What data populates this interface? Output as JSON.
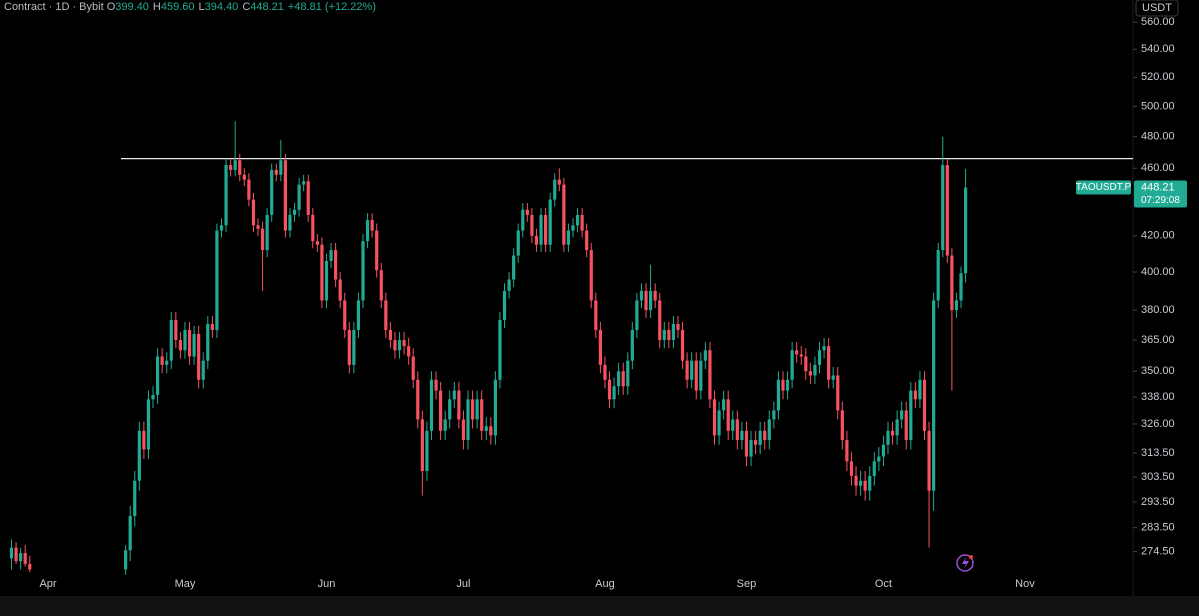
{
  "chart_data": {
    "type": "candlestick",
    "header": {
      "title": "Contract · 1D · Bybit",
      "items": [
        {
          "key": "O",
          "value": "399.40"
        },
        {
          "key": "H",
          "value": "459.60"
        },
        {
          "key": "L",
          "value": "394.40"
        },
        {
          "key": "C",
          "value": "448.21"
        }
      ],
      "change": "+48.81 (+12.22%)"
    },
    "currency": "USDT",
    "symbol": "TAOUSDT.P",
    "last_price": 448.21,
    "countdown": "07:29:08",
    "log_scale": true,
    "up_color": "#22ab94",
    "down_color": "#f7525f",
    "hline": {
      "value": 466,
      "color": "#e8e8e8"
    },
    "ylim": [
      266,
      577
    ],
    "yticks": [
      {
        "value": 274.5,
        "label": "274.50"
      },
      {
        "value": 283.5,
        "label": "283.50"
      },
      {
        "value": 293.5,
        "label": "293.50"
      },
      {
        "value": 303.5,
        "label": "303.50"
      },
      {
        "value": 313.5,
        "label": "313.50"
      },
      {
        "value": 326,
        "label": "326.00"
      },
      {
        "value": 338,
        "label": "338.00"
      },
      {
        "value": 350,
        "label": "350.00"
      },
      {
        "value": 365,
        "label": "365.00"
      },
      {
        "value": 380,
        "label": "380.00"
      },
      {
        "value": 400,
        "label": "400.00"
      },
      {
        "value": 420,
        "label": "420.00"
      },
      {
        "value": 460,
        "label": "460.00"
      },
      {
        "value": 480,
        "label": "480.00"
      },
      {
        "value": 500,
        "label": "500.00"
      },
      {
        "value": 520,
        "label": "520.00"
      },
      {
        "value": 540,
        "label": "540.00"
      },
      {
        "value": 560,
        "label": "560.00"
      }
    ],
    "categories": [
      null,
      null,
      null,
      null,
      null,
      null,
      null,
      null,
      "Apr",
      null,
      null,
      null,
      null,
      null,
      null,
      null,
      null,
      null,
      null,
      null,
      null,
      null,
      null,
      null,
      null,
      null,
      null,
      null,
      null,
      null,
      null,
      null,
      null,
      null,
      null,
      null,
      null,
      null,
      "May",
      null,
      null,
      null,
      null,
      null,
      null,
      null,
      null,
      null,
      null,
      null,
      null,
      null,
      null,
      null,
      null,
      null,
      null,
      null,
      null,
      null,
      null,
      null,
      null,
      null,
      null,
      null,
      null,
      null,
      null,
      "Jun",
      null,
      null,
      null,
      null,
      null,
      null,
      null,
      null,
      null,
      null,
      null,
      null,
      null,
      null,
      null,
      null,
      null,
      null,
      null,
      null,
      null,
      null,
      null,
      null,
      null,
      null,
      null,
      null,
      null,
      "Jul",
      null,
      null,
      null,
      null,
      null,
      null,
      null,
      null,
      null,
      null,
      null,
      null,
      null,
      null,
      null,
      null,
      null,
      null,
      null,
      null,
      null,
      null,
      null,
      null,
      null,
      null,
      null,
      null,
      null,
      null,
      "Aug",
      null,
      null,
      null,
      null,
      null,
      null,
      null,
      null,
      null,
      null,
      null,
      null,
      null,
      null,
      null,
      null,
      null,
      null,
      null,
      null,
      null,
      null,
      null,
      null,
      null,
      null,
      null,
      null,
      null,
      null,
      "Sep",
      null,
      null,
      null,
      null,
      null,
      null,
      null,
      null,
      null,
      null,
      null,
      null,
      null,
      null,
      null,
      null,
      null,
      null,
      null,
      null,
      null,
      null,
      null,
      null,
      null,
      null,
      null,
      null,
      null,
      "Oct",
      null,
      null,
      null,
      null,
      null,
      null,
      null,
      null,
      null,
      null,
      null,
      null,
      null,
      null,
      null,
      null,
      null,
      null,
      null,
      null,
      null,
      null,
      null,
      null,
      null,
      null,
      null,
      null,
      null,
      null,
      "Nov",
      null,
      null,
      null,
      null,
      null,
      null,
      null,
      null,
      null,
      null,
      null,
      null,
      null,
      null,
      null,
      null,
      null,
      null,
      null,
      null,
      null,
      null,
      null
    ],
    "ohlc": [
      [
        272,
        279,
        268,
        276
      ],
      [
        276,
        278,
        270,
        271
      ],
      [
        271,
        276,
        268,
        274
      ],
      [
        274,
        277,
        269,
        270
      ],
      [
        270,
        273,
        267,
        268
      ],
      null,
      null,
      null,
      null,
      null,
      null,
      null,
      null,
      null,
      null,
      null,
      null,
      null,
      null,
      null,
      null,
      null,
      null,
      null,
      null,
      [
        268,
        277,
        266,
        275
      ],
      [
        275,
        292,
        271,
        288
      ],
      [
        288,
        306,
        284,
        302
      ],
      [
        302,
        327,
        298,
        323
      ],
      [
        323,
        327,
        311,
        315
      ],
      [
        315,
        341,
        311,
        337
      ],
      [
        337,
        343,
        333,
        339
      ],
      [
        339,
        361,
        335,
        357
      ],
      [
        357,
        361,
        349,
        353
      ],
      [
        353,
        359,
        349,
        355
      ],
      [
        355,
        379,
        351,
        375
      ],
      [
        375,
        379,
        361,
        365
      ],
      [
        365,
        369,
        356,
        360
      ],
      [
        360,
        374,
        356,
        370
      ],
      [
        370,
        374,
        353,
        357
      ],
      [
        357,
        372,
        353,
        368
      ],
      [
        368,
        372,
        342,
        346
      ],
      [
        346,
        359,
        342,
        355
      ],
      [
        355,
        377,
        351,
        373
      ],
      [
        373,
        377,
        366,
        370
      ],
      [
        370,
        427,
        366,
        423
      ],
      [
        423,
        430,
        419,
        426
      ],
      [
        426,
        466,
        422,
        462
      ],
      [
        462,
        466,
        455,
        459
      ],
      [
        459,
        490,
        455,
        465
      ],
      [
        465,
        469,
        452,
        456
      ],
      [
        456,
        460,
        449,
        453
      ],
      [
        453,
        457,
        437,
        441
      ],
      [
        441,
        445,
        422,
        426
      ],
      [
        426,
        430,
        420,
        424
      ],
      [
        424,
        428,
        390,
        412
      ],
      [
        412,
        436,
        408,
        432
      ],
      [
        432,
        463,
        428,
        459
      ],
      [
        459,
        463,
        452,
        456
      ],
      [
        456,
        478,
        452,
        465
      ],
      [
        465,
        469,
        419,
        423
      ],
      [
        423,
        436,
        419,
        432
      ],
      [
        432,
        439,
        428,
        435
      ],
      [
        435,
        454,
        431,
        450
      ],
      [
        450,
        456,
        446,
        452
      ],
      [
        452,
        456,
        428,
        432
      ],
      [
        432,
        436,
        413,
        417
      ],
      [
        417,
        421,
        411,
        415
      ],
      [
        415,
        419,
        381,
        385
      ],
      [
        385,
        410,
        381,
        406
      ],
      [
        406,
        416,
        402,
        412
      ],
      [
        412,
        416,
        392,
        396
      ],
      [
        396,
        400,
        381,
        385
      ],
      [
        385,
        389,
        366,
        370
      ],
      [
        370,
        374,
        349,
        353
      ],
      [
        353,
        374,
        349,
        370
      ],
      [
        370,
        389,
        366,
        385
      ],
      [
        385,
        421,
        381,
        417
      ],
      [
        417,
        433,
        413,
        429
      ],
      [
        429,
        433,
        419,
        423
      ],
      [
        423,
        427,
        397,
        401
      ],
      [
        401,
        405,
        381,
        385
      ],
      [
        385,
        389,
        366,
        370
      ],
      [
        370,
        374,
        361,
        365
      ],
      [
        365,
        369,
        356,
        360
      ],
      [
        360,
        369,
        356,
        365
      ],
      [
        365,
        369,
        358,
        362
      ],
      [
        362,
        366,
        353,
        357
      ],
      [
        357,
        361,
        342,
        346
      ],
      [
        346,
        350,
        324,
        328
      ],
      [
        328,
        332,
        296,
        306
      ],
      [
        306,
        327,
        302,
        323
      ],
      [
        323,
        350,
        319,
        346
      ],
      [
        346,
        350,
        337,
        341
      ],
      [
        341,
        345,
        319,
        323
      ],
      [
        323,
        332,
        319,
        328
      ],
      [
        328,
        341,
        324,
        337
      ],
      [
        337,
        345,
        333,
        341
      ],
      [
        341,
        345,
        324,
        328
      ],
      [
        328,
        332,
        315,
        319
      ],
      [
        319,
        341,
        315,
        337
      ],
      [
        337,
        341,
        324,
        328
      ],
      [
        328,
        341,
        324,
        337
      ],
      [
        337,
        341,
        319,
        323
      ],
      [
        323,
        329,
        319,
        325
      ],
      [
        325,
        329,
        317,
        321
      ],
      [
        321,
        350,
        317,
        346
      ],
      [
        346,
        379,
        342,
        375
      ],
      [
        375,
        394,
        371,
        390
      ],
      [
        390,
        400,
        386,
        396
      ],
      [
        396,
        413,
        392,
        409
      ],
      [
        409,
        427,
        405,
        423
      ],
      [
        423,
        439,
        419,
        435
      ],
      [
        435,
        439,
        428,
        432
      ],
      [
        432,
        436,
        416,
        420
      ],
      [
        420,
        424,
        411,
        415
      ],
      [
        415,
        436,
        411,
        432
      ],
      [
        432,
        436,
        411,
        415
      ],
      [
        415,
        445,
        411,
        441
      ],
      [
        441,
        457,
        437,
        453
      ],
      [
        453,
        460,
        446,
        450
      ],
      [
        450,
        454,
        411,
        415
      ],
      [
        415,
        427,
        411,
        423
      ],
      [
        423,
        430,
        419,
        426
      ],
      [
        426,
        436,
        422,
        432
      ],
      [
        432,
        436,
        419,
        423
      ],
      [
        423,
        427,
        408,
        412
      ],
      [
        412,
        416,
        381,
        385
      ],
      [
        385,
        389,
        366,
        370
      ],
      [
        370,
        374,
        349,
        353
      ],
      [
        353,
        357,
        342,
        346
      ],
      [
        346,
        350,
        333,
        337
      ],
      [
        337,
        347,
        333,
        343
      ],
      [
        343,
        354,
        339,
        350
      ],
      [
        350,
        354,
        339,
        343
      ],
      [
        343,
        359,
        339,
        355
      ],
      [
        355,
        374,
        351,
        370
      ],
      [
        370,
        389,
        366,
        385
      ],
      [
        385,
        394,
        381,
        390
      ],
      [
        390,
        394,
        376,
        380
      ],
      [
        380,
        404,
        376,
        390
      ],
      [
        390,
        394,
        381,
        385
      ],
      [
        385,
        389,
        361,
        365
      ],
      [
        365,
        374,
        361,
        370
      ],
      [
        370,
        374,
        361,
        365
      ],
      [
        365,
        377,
        361,
        373
      ],
      [
        373,
        377,
        366,
        370
      ],
      [
        370,
        374,
        351,
        355
      ],
      [
        355,
        359,
        342,
        346
      ],
      [
        346,
        359,
        342,
        355
      ],
      [
        355,
        359,
        337,
        341
      ],
      [
        341,
        359,
        337,
        355
      ],
      [
        355,
        364,
        351,
        360
      ],
      [
        360,
        364,
        333,
        337
      ],
      [
        337,
        341,
        317,
        321
      ],
      [
        321,
        336,
        317,
        332
      ],
      [
        332,
        341,
        328,
        337
      ],
      [
        337,
        341,
        319,
        323
      ],
      [
        323,
        332,
        319,
        328
      ],
      [
        328,
        332,
        315,
        319
      ],
      [
        319,
        327,
        315,
        323
      ],
      [
        323,
        327,
        308,
        312
      ],
      [
        312,
        323,
        308,
        319
      ],
      [
        319,
        323,
        313,
        317
      ],
      [
        317,
        327,
        313,
        323
      ],
      [
        323,
        327,
        315,
        319
      ],
      [
        319,
        332,
        315,
        328
      ],
      [
        328,
        336,
        324,
        332
      ],
      [
        332,
        350,
        328,
        346
      ],
      [
        346,
        350,
        337,
        341
      ],
      [
        341,
        350,
        337,
        346
      ],
      [
        346,
        364,
        342,
        360
      ],
      [
        360,
        364,
        354,
        358
      ],
      [
        358,
        362,
        353,
        357
      ],
      [
        357,
        361,
        346,
        350
      ],
      [
        350,
        354,
        344,
        348
      ],
      [
        348,
        357,
        344,
        353
      ],
      [
        353,
        364,
        349,
        360
      ],
      [
        360,
        366,
        356,
        362
      ],
      [
        362,
        366,
        342,
        346
      ],
      [
        346,
        352,
        342,
        348
      ],
      [
        348,
        352,
        328,
        332
      ],
      [
        332,
        336,
        315,
        319
      ],
      [
        319,
        323,
        306,
        310
      ],
      [
        310,
        314,
        300,
        304
      ],
      [
        304,
        308,
        296,
        300
      ],
      [
        300,
        306,
        296,
        302
      ],
      [
        302,
        306,
        294,
        298
      ],
      [
        298,
        308,
        294,
        304
      ],
      [
        304,
        314,
        300,
        310
      ],
      [
        310,
        316,
        306,
        312
      ],
      [
        312,
        321,
        308,
        317
      ],
      [
        317,
        327,
        313,
        323
      ],
      [
        323,
        327,
        317,
        321
      ],
      [
        321,
        332,
        317,
        328
      ],
      [
        328,
        336,
        324,
        332
      ],
      [
        332,
        336,
        315,
        319
      ],
      [
        319,
        345,
        315,
        341
      ],
      [
        341,
        345,
        333,
        337
      ],
      [
        337,
        350,
        333,
        346
      ],
      [
        346,
        350,
        319,
        323
      ],
      [
        323,
        327,
        276,
        298
      ],
      [
        298,
        389,
        290,
        385
      ],
      [
        385,
        416,
        381,
        412
      ],
      [
        412,
        480,
        408,
        462
      ],
      [
        462,
        466,
        405,
        409
      ],
      [
        409,
        413,
        341,
        380
      ],
      [
        380,
        389,
        376,
        385
      ],
      [
        385,
        403,
        381,
        399.4
      ],
      [
        399.4,
        459.6,
        394.4,
        448.21
      ],
      null,
      null,
      null,
      null,
      null,
      null,
      null,
      null,
      null,
      null,
      null,
      null,
      null,
      null,
      null,
      null,
      null,
      null,
      null,
      null,
      null,
      null,
      null,
      null,
      null,
      null,
      null,
      null,
      null,
      null,
      null,
      null,
      null,
      null,
      null,
      null
    ]
  }
}
